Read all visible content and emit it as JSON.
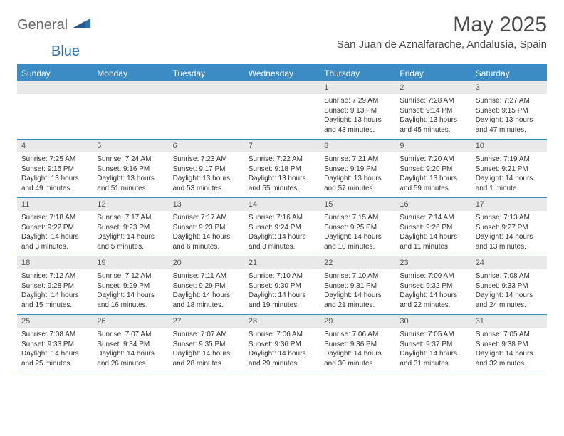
{
  "brand": {
    "general": "General",
    "blue": "Blue"
  },
  "title": "May 2025",
  "location": "San Juan de Aznalfarache, Andalusia, Spain",
  "colors": {
    "accent": "#3b8bc4",
    "header_text": "#4a4a4a",
    "daynum_bg": "#e9e9e9",
    "body_text": "#333333",
    "logo_gray": "#6a6a6a",
    "logo_blue": "#2f6fad"
  },
  "weekdays": [
    "Sunday",
    "Monday",
    "Tuesday",
    "Wednesday",
    "Thursday",
    "Friday",
    "Saturday"
  ],
  "calendar": {
    "first_weekday_index": 4,
    "num_days": 31
  },
  "days": {
    "1": {
      "sunrise": "7:29 AM",
      "sunset": "9:13 PM",
      "daylight": "13 hours and 43 minutes."
    },
    "2": {
      "sunrise": "7:28 AM",
      "sunset": "9:14 PM",
      "daylight": "13 hours and 45 minutes."
    },
    "3": {
      "sunrise": "7:27 AM",
      "sunset": "9:15 PM",
      "daylight": "13 hours and 47 minutes."
    },
    "4": {
      "sunrise": "7:25 AM",
      "sunset": "9:15 PM",
      "daylight": "13 hours and 49 minutes."
    },
    "5": {
      "sunrise": "7:24 AM",
      "sunset": "9:16 PM",
      "daylight": "13 hours and 51 minutes."
    },
    "6": {
      "sunrise": "7:23 AM",
      "sunset": "9:17 PM",
      "daylight": "13 hours and 53 minutes."
    },
    "7": {
      "sunrise": "7:22 AM",
      "sunset": "9:18 PM",
      "daylight": "13 hours and 55 minutes."
    },
    "8": {
      "sunrise": "7:21 AM",
      "sunset": "9:19 PM",
      "daylight": "13 hours and 57 minutes."
    },
    "9": {
      "sunrise": "7:20 AM",
      "sunset": "9:20 PM",
      "daylight": "13 hours and 59 minutes."
    },
    "10": {
      "sunrise": "7:19 AM",
      "sunset": "9:21 PM",
      "daylight": "14 hours and 1 minute."
    },
    "11": {
      "sunrise": "7:18 AM",
      "sunset": "9:22 PM",
      "daylight": "14 hours and 3 minutes."
    },
    "12": {
      "sunrise": "7:17 AM",
      "sunset": "9:23 PM",
      "daylight": "14 hours and 5 minutes."
    },
    "13": {
      "sunrise": "7:17 AM",
      "sunset": "9:23 PM",
      "daylight": "14 hours and 6 minutes."
    },
    "14": {
      "sunrise": "7:16 AM",
      "sunset": "9:24 PM",
      "daylight": "14 hours and 8 minutes."
    },
    "15": {
      "sunrise": "7:15 AM",
      "sunset": "9:25 PM",
      "daylight": "14 hours and 10 minutes."
    },
    "16": {
      "sunrise": "7:14 AM",
      "sunset": "9:26 PM",
      "daylight": "14 hours and 11 minutes."
    },
    "17": {
      "sunrise": "7:13 AM",
      "sunset": "9:27 PM",
      "daylight": "14 hours and 13 minutes."
    },
    "18": {
      "sunrise": "7:12 AM",
      "sunset": "9:28 PM",
      "daylight": "14 hours and 15 minutes."
    },
    "19": {
      "sunrise": "7:12 AM",
      "sunset": "9:29 PM",
      "daylight": "14 hours and 16 minutes."
    },
    "20": {
      "sunrise": "7:11 AM",
      "sunset": "9:29 PM",
      "daylight": "14 hours and 18 minutes."
    },
    "21": {
      "sunrise": "7:10 AM",
      "sunset": "9:30 PM",
      "daylight": "14 hours and 19 minutes."
    },
    "22": {
      "sunrise": "7:10 AM",
      "sunset": "9:31 PM",
      "daylight": "14 hours and 21 minutes."
    },
    "23": {
      "sunrise": "7:09 AM",
      "sunset": "9:32 PM",
      "daylight": "14 hours and 22 minutes."
    },
    "24": {
      "sunrise": "7:08 AM",
      "sunset": "9:33 PM",
      "daylight": "14 hours and 24 minutes."
    },
    "25": {
      "sunrise": "7:08 AM",
      "sunset": "9:33 PM",
      "daylight": "14 hours and 25 minutes."
    },
    "26": {
      "sunrise": "7:07 AM",
      "sunset": "9:34 PM",
      "daylight": "14 hours and 26 minutes."
    },
    "27": {
      "sunrise": "7:07 AM",
      "sunset": "9:35 PM",
      "daylight": "14 hours and 28 minutes."
    },
    "28": {
      "sunrise": "7:06 AM",
      "sunset": "9:36 PM",
      "daylight": "14 hours and 29 minutes."
    },
    "29": {
      "sunrise": "7:06 AM",
      "sunset": "9:36 PM",
      "daylight": "14 hours and 30 minutes."
    },
    "30": {
      "sunrise": "7:05 AM",
      "sunset": "9:37 PM",
      "daylight": "14 hours and 31 minutes."
    },
    "31": {
      "sunrise": "7:05 AM",
      "sunset": "9:38 PM",
      "daylight": "14 hours and 32 minutes."
    }
  },
  "labels": {
    "sunrise": "Sunrise: ",
    "sunset": "Sunset: ",
    "daylight": "Daylight: "
  }
}
